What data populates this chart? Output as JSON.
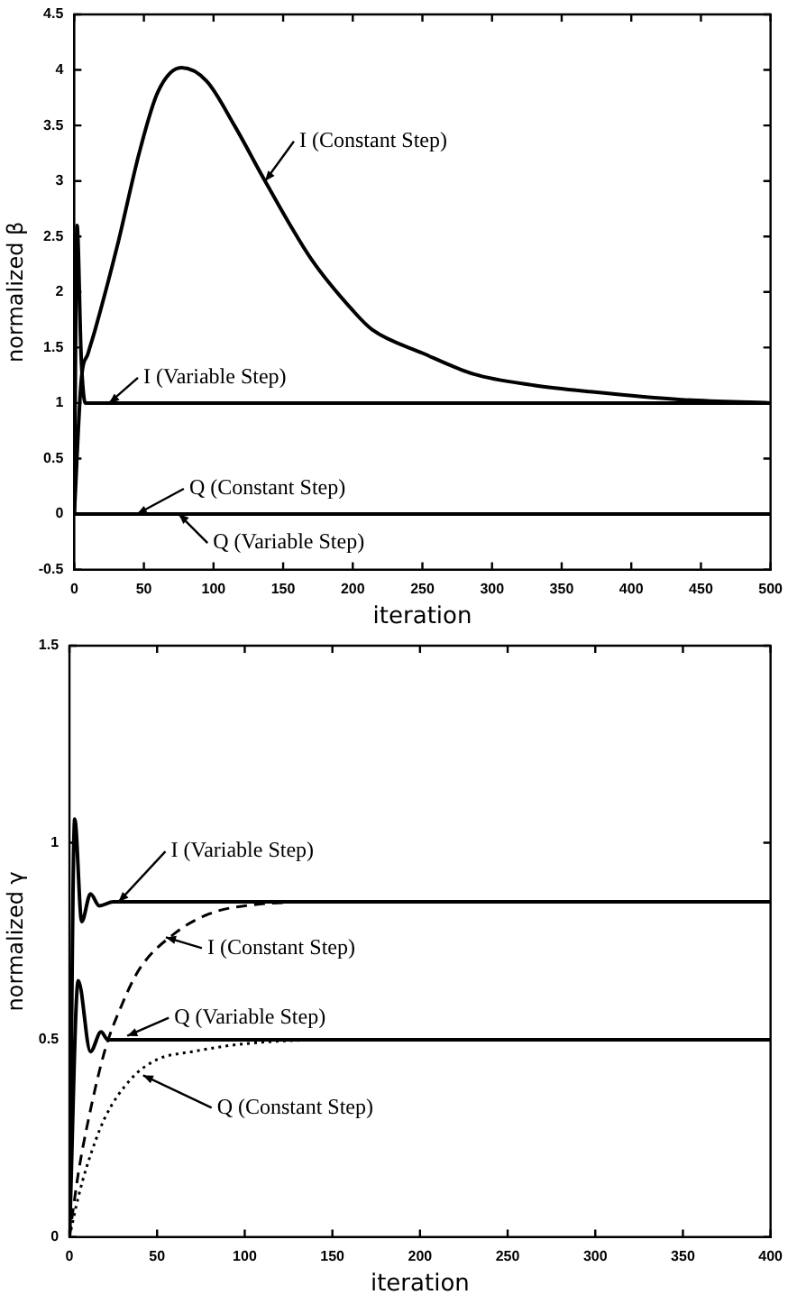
{
  "chart_data": [
    {
      "type": "line",
      "xlabel": "iteration",
      "ylabel": "normalized β",
      "xlim": [
        0,
        500
      ],
      "ylim": [
        -0.5,
        4.5
      ],
      "xticks": [
        0,
        50,
        100,
        150,
        200,
        250,
        300,
        350,
        400,
        450,
        500
      ],
      "yticks": [
        -0.5,
        0,
        0.5,
        1,
        1.5,
        2,
        2.5,
        3,
        3.5,
        4,
        4.5
      ],
      "grid": false,
      "legend": false,
      "marker": "none",
      "series": [
        {
          "color": "#000000",
          "line_style": "solid",
          "x": [
            0,
            5,
            10,
            15,
            31,
            47,
            60,
            77,
            95,
            115,
            137,
            170,
            201,
            214,
            250,
            287,
            330,
            372,
            436,
            500
          ],
          "values": [
            0,
            1.2,
            1.45,
            1.66,
            2.42,
            3.27,
            3.8,
            4.02,
            3.9,
            3.5,
            3.0,
            2.3,
            1.82,
            1.66,
            1.45,
            1.26,
            1.16,
            1.1,
            1.03,
            1.0
          ]
        },
        {
          "color": "#000000",
          "line_style": "solid",
          "x": [
            0,
            2,
            5,
            8,
            500
          ],
          "values": [
            0,
            2.6,
            1.4,
            1.0,
            1.0
          ]
        },
        {
          "color": "#000000",
          "line_style": "solid",
          "x": [
            0,
            500
          ],
          "values": [
            0,
            0
          ]
        }
      ],
      "annotations": [
        {
          "text": "I (Constant Step)",
          "x": 137,
          "y": 3.0
        },
        {
          "text": "I (Variable Step)",
          "x": 25,
          "y": 1.0
        },
        {
          "text": "Q (Constant Step)",
          "x": 45,
          "y": 0
        },
        {
          "text": "Q (Variable Step)",
          "x": 75,
          "y": 0
        }
      ]
    },
    {
      "type": "line",
      "xlabel": "iteration",
      "ylabel": "normalized γ",
      "xlim": [
        0,
        400
      ],
      "ylim": [
        0,
        1.5
      ],
      "xticks": [
        0,
        50,
        100,
        150,
        200,
        250,
        300,
        350,
        400
      ],
      "yticks": [
        0,
        0.5,
        1,
        1.5
      ],
      "grid": false,
      "legend": false,
      "marker": "none",
      "series": [
        {
          "color": "#000000",
          "line_style": "solid",
          "x": [
            0,
            3,
            7,
            12,
            17,
            25,
            400
          ],
          "values": [
            0,
            1.06,
            0.8,
            0.87,
            0.84,
            0.85,
            0.85
          ]
        },
        {
          "color": "#000000",
          "line_style": "dashed",
          "x": [
            0,
            5,
            10,
            20,
            30,
            40,
            60,
            80,
            100,
            150,
            400
          ],
          "values": [
            0,
            0.16,
            0.28,
            0.47,
            0.59,
            0.68,
            0.77,
            0.82,
            0.84,
            0.85,
            0.85
          ]
        },
        {
          "color": "#000000",
          "line_style": "solid",
          "x": [
            0,
            5,
            12,
            18,
            22,
            400
          ],
          "values": [
            0,
            0.65,
            0.47,
            0.52,
            0.5,
            0.5
          ]
        },
        {
          "color": "#000000",
          "line_style": "dotted",
          "x": [
            0,
            5,
            10,
            20,
            35,
            50,
            70,
            100,
            150,
            400
          ],
          "values": [
            0,
            0.1,
            0.18,
            0.3,
            0.4,
            0.45,
            0.47,
            0.49,
            0.5,
            0.5
          ]
        }
      ],
      "annotations": [
        {
          "text": "I (Variable Step)",
          "x": 28,
          "y": 0.85
        },
        {
          "text": "I (Constant Step)",
          "x": 55,
          "y": 0.76
        },
        {
          "text": "Q (Variable Step)",
          "x": 33,
          "y": 0.51
        },
        {
          "text": "Q (Constant Step)",
          "x": 42,
          "y": 0.41
        }
      ]
    }
  ]
}
